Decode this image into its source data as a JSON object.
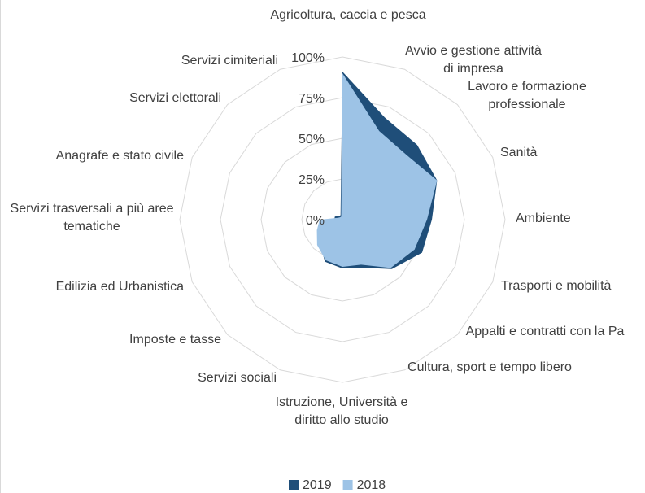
{
  "chart_data": {
    "type": "radar",
    "categories": [
      "Agricoltura, caccia e pesca",
      "Avvio e gestione attività di impresa",
      "Lavoro e formazione professionale",
      "Sanità",
      "Ambiente",
      "Trasporti e mobilità",
      "Appalti e contratti con la Pa",
      "Cultura, sport e tempo libero",
      "Istruzione, Università e diritto allo studio",
      "Servizi sociali",
      "Imposte e tasse",
      "Edilizia ed Urbanistica",
      "Servizi trasversali a più aree tematiche",
      "Anagrafe e stato civile",
      "Servizi elettorali",
      "Servizi cimiteriali"
    ],
    "series": [
      {
        "name": "2019",
        "color": "#1f4e79",
        "values": [
          91,
          68,
          65,
          63,
          55,
          53,
          43,
          32,
          30,
          28,
          20,
          15,
          5,
          5,
          3,
          3
        ]
      },
      {
        "name": "2018",
        "color": "#9dc3e6",
        "values": [
          90,
          59,
          56,
          63,
          52,
          48,
          42,
          30,
          29,
          27,
          22,
          17,
          14,
          3,
          2,
          2
        ]
      }
    ],
    "rlim": [
      0,
      100
    ],
    "rticks": [
      {
        "value": 0,
        "label": "0%"
      },
      {
        "value": 25,
        "label": "25%"
      },
      {
        "value": 50,
        "label": "50%"
      },
      {
        "value": 75,
        "label": "75%"
      },
      {
        "value": 100,
        "label": "100%"
      }
    ],
    "grid": true,
    "legend": "bottom"
  }
}
